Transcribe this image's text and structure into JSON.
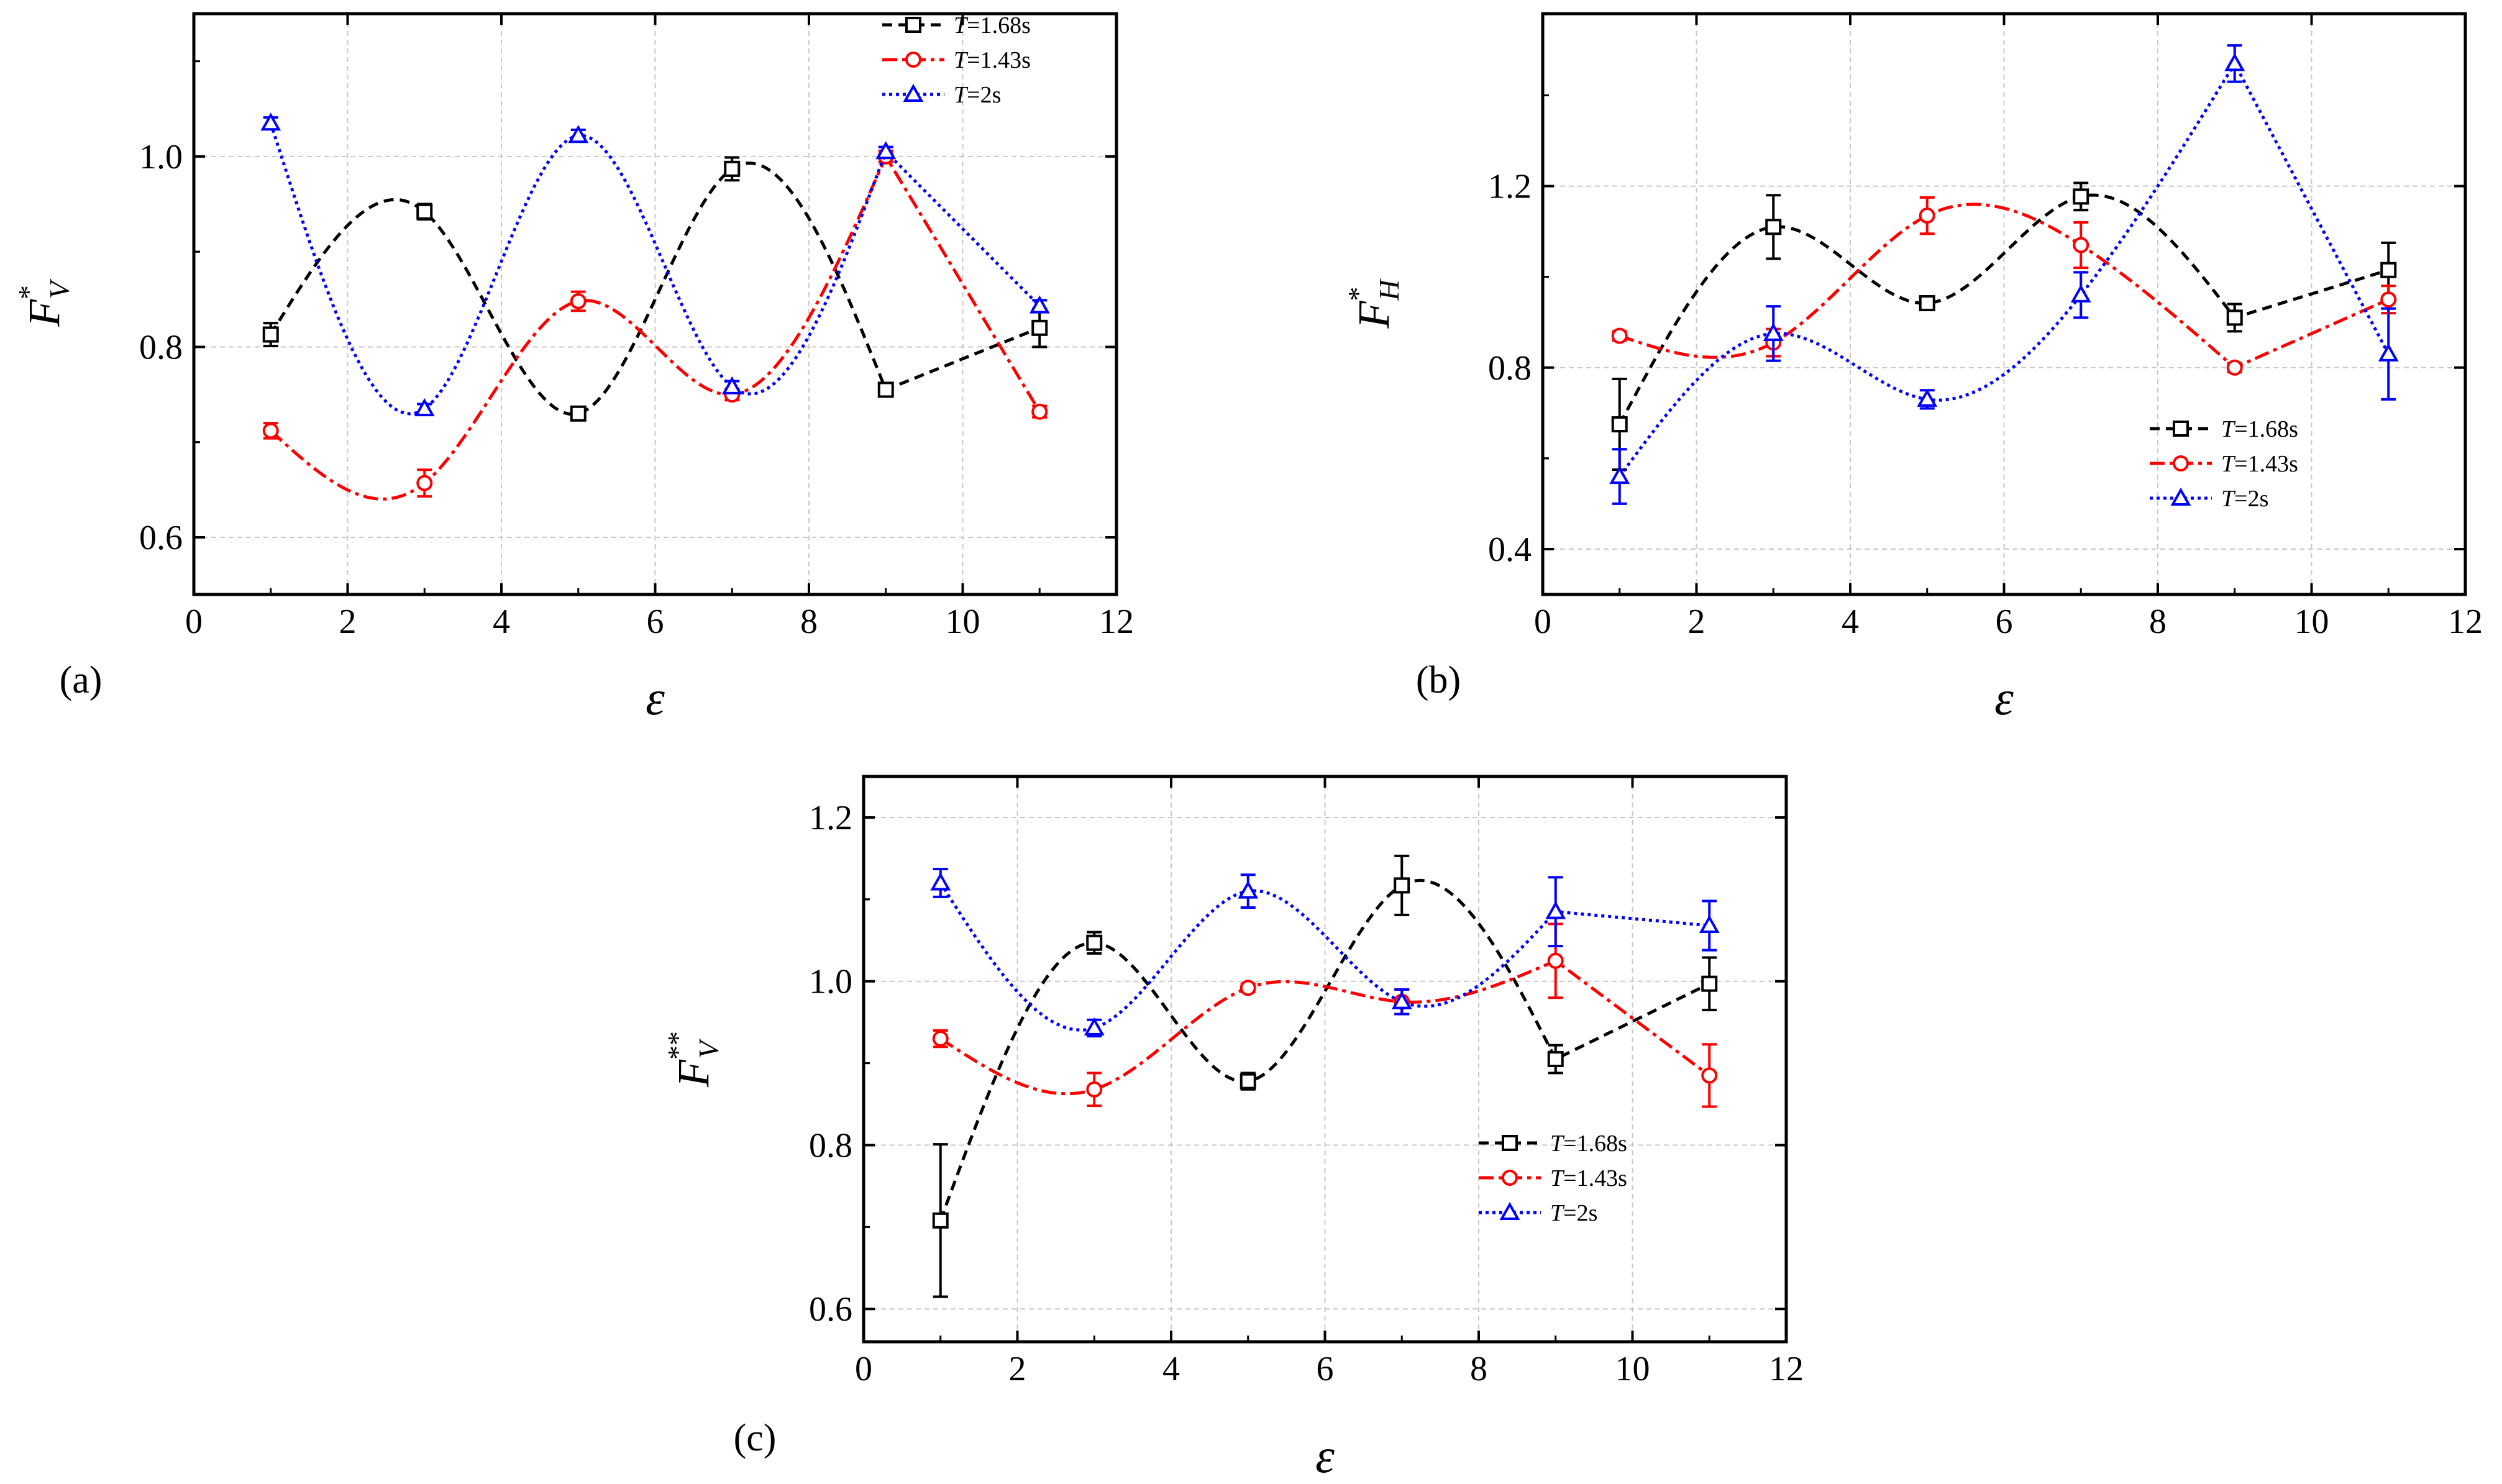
{
  "chart_data": [
    {
      "panel": "(a)",
      "type": "line",
      "xlabel": "ε",
      "ylabel": {
        "base": "F",
        "sup": "*",
        "sub": "V"
      },
      "xlim": [
        0,
        12
      ],
      "ylim": [
        0.54,
        1.15
      ],
      "xticks": [
        0,
        2,
        4,
        6,
        8,
        10,
        12
      ],
      "xtick_labels": [
        "0",
        "2",
        "4",
        "6",
        "8",
        "10",
        "12"
      ],
      "yticks": [
        0.6,
        0.8,
        1.0
      ],
      "ytick_labels": [
        "0.6",
        "0.8",
        "1.0"
      ],
      "grid": true,
      "legend_position": "top-right",
      "series": [
        {
          "name": "T=1.68s",
          "legend_var": "T",
          "legend_value": "=1.68s",
          "color": "#000000",
          "dash": "16,10",
          "marker": "square",
          "x": [
            1,
            3,
            5,
            7,
            9,
            11
          ],
          "y": [
            0.813,
            0.942,
            0.73,
            0.987,
            0.755,
            0.82
          ],
          "err": [
            0.012,
            0.008,
            0.006,
            0.012,
            0.006,
            0.02
          ]
        },
        {
          "name": "T=1.43s",
          "legend_var": "T",
          "legend_value": "=1.43s",
          "color": "#ff0000",
          "dash": "24,8,6,8",
          "marker": "circle",
          "x": [
            1,
            3,
            5,
            7,
            9,
            11
          ],
          "y": [
            0.712,
            0.657,
            0.848,
            0.75,
            1.0,
            0.732
          ],
          "err": [
            0.008,
            0.014,
            0.01,
            0.006,
            0.006,
            0.006
          ]
        },
        {
          "name": "T=2s",
          "legend_var": "T",
          "legend_value": "=2s",
          "color": "#0000ff",
          "dash": "5,6",
          "marker": "triangle",
          "x": [
            1,
            3,
            5,
            7,
            9,
            11
          ],
          "y": [
            1.035,
            0.735,
            1.022,
            0.758,
            1.005,
            0.843
          ],
          "err": [
            0.006,
            0.005,
            0.006,
            0.006,
            0.005,
            0.006
          ]
        }
      ]
    },
    {
      "panel": "(b)",
      "type": "line",
      "xlabel": "ε",
      "ylabel": {
        "base": "F",
        "sup": "*",
        "sub": "H"
      },
      "xlim": [
        0,
        12
      ],
      "ylim": [
        0.3,
        1.58
      ],
      "xticks": [
        0,
        2,
        4,
        6,
        8,
        10,
        12
      ],
      "xtick_labels": [
        "0",
        "2",
        "4",
        "6",
        "8",
        "10",
        "12"
      ],
      "yticks": [
        0.4,
        0.8,
        1.2
      ],
      "ytick_labels": [
        "0.4",
        "0.8",
        "1.2"
      ],
      "grid": true,
      "legend_position": "bottom-right",
      "series": [
        {
          "name": "T=1.68s",
          "legend_var": "T",
          "legend_value": "=1.68s",
          "color": "#000000",
          "dash": "16,10",
          "marker": "square",
          "x": [
            1,
            3,
            5,
            7,
            9,
            11
          ],
          "y": [
            0.675,
            1.11,
            0.942,
            1.177,
            0.91,
            1.015
          ],
          "err": [
            0.1,
            0.07,
            0.01,
            0.03,
            0.03,
            0.06
          ]
        },
        {
          "name": "T=1.43s",
          "legend_var": "T",
          "legend_value": "=1.43s",
          "color": "#ff0000",
          "dash": "24,8,6,8",
          "marker": "circle",
          "x": [
            1,
            3,
            5,
            7,
            9,
            11
          ],
          "y": [
            0.87,
            0.855,
            1.135,
            1.07,
            0.8,
            0.95
          ],
          "err": [
            0.01,
            0.03,
            0.04,
            0.05,
            0.01,
            0.03
          ]
        },
        {
          "name": "T=2s",
          "legend_var": "T",
          "legend_value": "=2s",
          "color": "#0000ff",
          "dash": "5,6",
          "marker": "triangle",
          "x": [
            1,
            3,
            5,
            7,
            9,
            11
          ],
          "y": [
            0.56,
            0.875,
            0.73,
            0.96,
            1.47,
            0.83
          ],
          "err": [
            0.06,
            0.06,
            0.02,
            0.05,
            0.04,
            0.1
          ]
        }
      ]
    },
    {
      "panel": "(c)",
      "type": "line",
      "xlabel": "ε",
      "ylabel": {
        "base": "F",
        "sup": "**",
        "sub": "V"
      },
      "xlim": [
        0,
        12
      ],
      "ylim": [
        0.56,
        1.25
      ],
      "xticks": [
        0,
        2,
        4,
        6,
        8,
        10,
        12
      ],
      "xtick_labels": [
        "0",
        "2",
        "4",
        "6",
        "8",
        "10",
        "12"
      ],
      "yticks": [
        0.6,
        0.8,
        1.0,
        1.2
      ],
      "ytick_labels": [
        "0.6",
        "0.8",
        "1.0",
        "1.2"
      ],
      "grid": true,
      "legend_position": "bottom-right",
      "series": [
        {
          "name": "T=1.68s",
          "legend_var": "T",
          "legend_value": "=1.68s",
          "color": "#000000",
          "dash": "16,10",
          "marker": "square",
          "x": [
            1,
            3,
            5,
            7,
            9,
            11
          ],
          "y": [
            0.708,
            1.047,
            0.878,
            1.117,
            0.905,
            0.997
          ],
          "err": [
            0.093,
            0.013,
            0.01,
            0.036,
            0.017,
            0.032
          ]
        },
        {
          "name": "T=1.43s",
          "legend_var": "T",
          "legend_value": "=1.43s",
          "color": "#ff0000",
          "dash": "24,8,6,8",
          "marker": "circle",
          "x": [
            1,
            3,
            5,
            7,
            9,
            11
          ],
          "y": [
            0.93,
            0.868,
            0.992,
            0.975,
            1.025,
            0.885
          ],
          "err": [
            0.01,
            0.02,
            0.005,
            0.015,
            0.045,
            0.038
          ]
        },
        {
          "name": "T=2s",
          "legend_var": "T",
          "legend_value": "=2s",
          "color": "#0000ff",
          "dash": "5,6",
          "marker": "triangle",
          "x": [
            1,
            3,
            5,
            7,
            9,
            11
          ],
          "y": [
            1.12,
            0.943,
            1.11,
            0.975,
            1.085,
            1.068
          ],
          "err": [
            0.017,
            0.01,
            0.02,
            0.015,
            0.042,
            0.03
          ]
        }
      ]
    }
  ]
}
